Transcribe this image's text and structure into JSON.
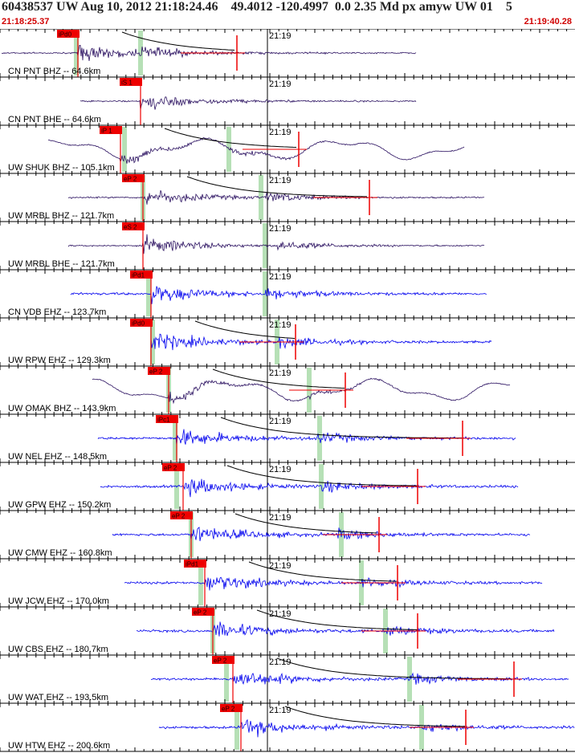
{
  "header": {
    "event_line": "60438537 UW Aug 10, 2012 21:18:24.46    49.4012 -120.4997  0.0 2.35 Md px amyw UW 01    5",
    "start_time": "21:18:25.37",
    "end_time": "21:19:40.28"
  },
  "colors": {
    "broadband_trace": "#2a1060",
    "short_period_trace": "#0000ee",
    "pick_marker": "#ee0000",
    "pick_window": "#b6e0b6",
    "coda_curve": "#000000",
    "grid": "#000000"
  },
  "minute_label": "21:19",
  "traces": [
    {
      "label": "CN PNT BHZ -- 64.6km",
      "type": "broadband",
      "pick": "iPd0"
    },
    {
      "label": "CN PNT BHE -- 64.6km",
      "type": "broadband",
      "pick": "iS 1"
    },
    {
      "label": "UW SHUK BHZ -- 105.1km",
      "type": "broadband",
      "pick": "iP 1"
    },
    {
      "label": "UW MRBL BHZ -- 121.7km",
      "type": "broadband",
      "pick": "eP 2"
    },
    {
      "label": "UW MRBL BHE -- 121.7km",
      "type": "broadband",
      "pick": "eS 2"
    },
    {
      "label": "CN VDB EHZ -- 123.7km",
      "type": "shortperiod",
      "pick": "iPd1"
    },
    {
      "label": "UW RPW EHZ -- 129.3km",
      "type": "shortperiod",
      "pick": "iPd0"
    },
    {
      "label": "UW OMAK BHZ -- 143.9km",
      "type": "broadband",
      "pick": "eP 2"
    },
    {
      "label": "UW NEL EHZ -- 148.5km",
      "type": "shortperiod",
      "pick": "iPc1"
    },
    {
      "label": "UW GPW EHZ -- 150.2km",
      "type": "shortperiod",
      "pick": "eP 2"
    },
    {
      "label": "UW CMW EHZ -- 160.8km",
      "type": "shortperiod",
      "pick": "eP 2"
    },
    {
      "label": "UW JCW EHZ -- 170.0km",
      "type": "shortperiod",
      "pick": "iPd1"
    },
    {
      "label": "UW CBS EHZ -- 180.7km",
      "type": "shortperiod",
      "pick": "eP 2"
    },
    {
      "label": "UW WAT EHZ -- 193.5km",
      "type": "shortperiod",
      "pick": "eP 2"
    },
    {
      "label": "UW HTW EHZ -- 200.6km",
      "type": "shortperiod",
      "pick": "eP 2"
    }
  ]
}
